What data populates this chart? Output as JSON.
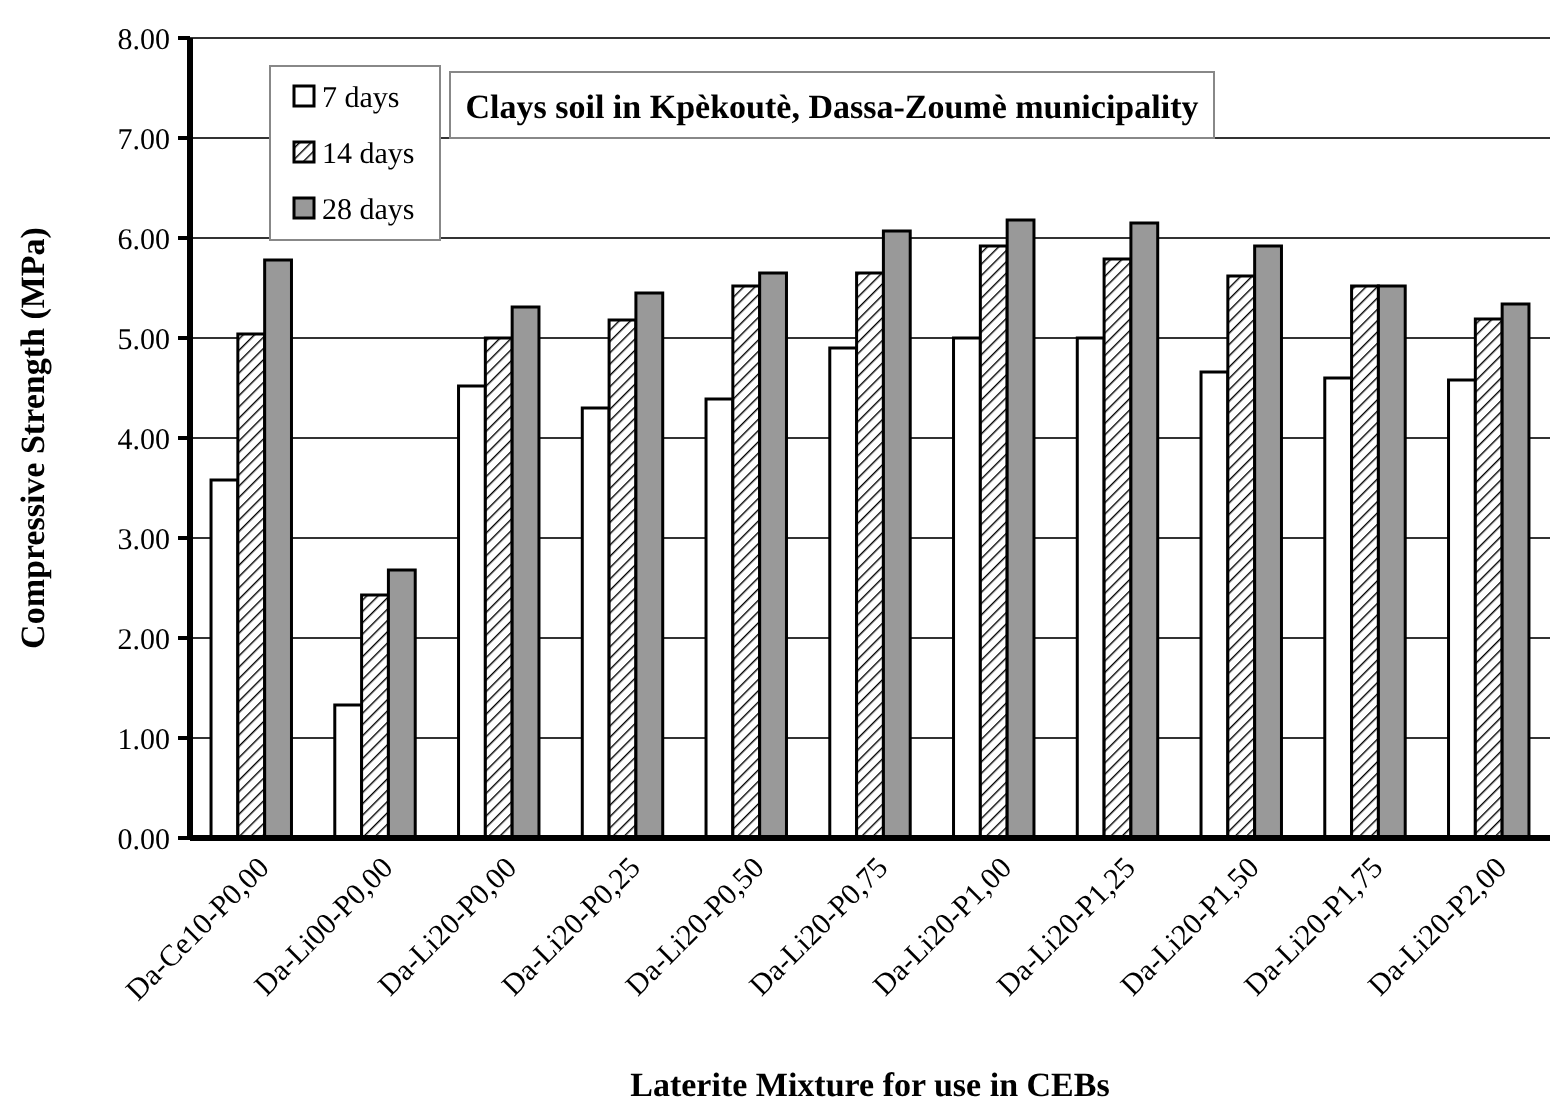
{
  "chart_data": {
    "type": "bar",
    "title": "Clays soil in Kpèkoutè, Dassa-Zoumè municipality",
    "xlabel": "Laterite Mixture for use in CEBs",
    "ylabel": "Compressive Strength (MPa)",
    "categories": [
      "Da-Ce10-P0,00",
      "Da-Li00-P0,00",
      "Da-Li20-P0,00",
      "Da-Li20-P0,25",
      "Da-Li20-P0,50",
      "Da-Li20-P0,75",
      "Da-Li20-P1,00",
      "Da-Li20-P1,25",
      "Da-Li20-P1,50",
      "Da-Li20-P1,75",
      "Da-Li20-P2,00"
    ],
    "series": [
      {
        "name": "7 days",
        "color": "#ffffff",
        "values": [
          3.58,
          1.33,
          4.52,
          4.3,
          4.39,
          4.9,
          5.0,
          5.0,
          4.66,
          4.6,
          4.58
        ]
      },
      {
        "name": "14 days",
        "color": "#000000",
        "values": [
          5.04,
          2.43,
          5.0,
          5.18,
          5.52,
          5.65,
          5.92,
          5.79,
          5.62,
          5.52,
          5.19
        ]
      },
      {
        "name": "28 days",
        "color": "#999999",
        "values": [
          5.78,
          2.68,
          5.31,
          5.45,
          5.65,
          6.07,
          6.18,
          6.15,
          5.92,
          5.52,
          5.34
        ]
      }
    ],
    "ylim": [
      0,
      8
    ],
    "yticks": [
      {
        "value": 0,
        "label": "0.00"
      },
      {
        "value": 1,
        "label": "1.00"
      },
      {
        "value": 2,
        "label": "2.00"
      },
      {
        "value": 3,
        "label": "3.00"
      },
      {
        "value": 4,
        "label": "4.00"
      },
      {
        "value": 5,
        "label": "5.00"
      },
      {
        "value": 6,
        "label": "6.00"
      },
      {
        "value": 7,
        "label": "7.00"
      },
      {
        "value": 8,
        "label": "8.00"
      }
    ],
    "grid": "y",
    "legend": "top left"
  }
}
